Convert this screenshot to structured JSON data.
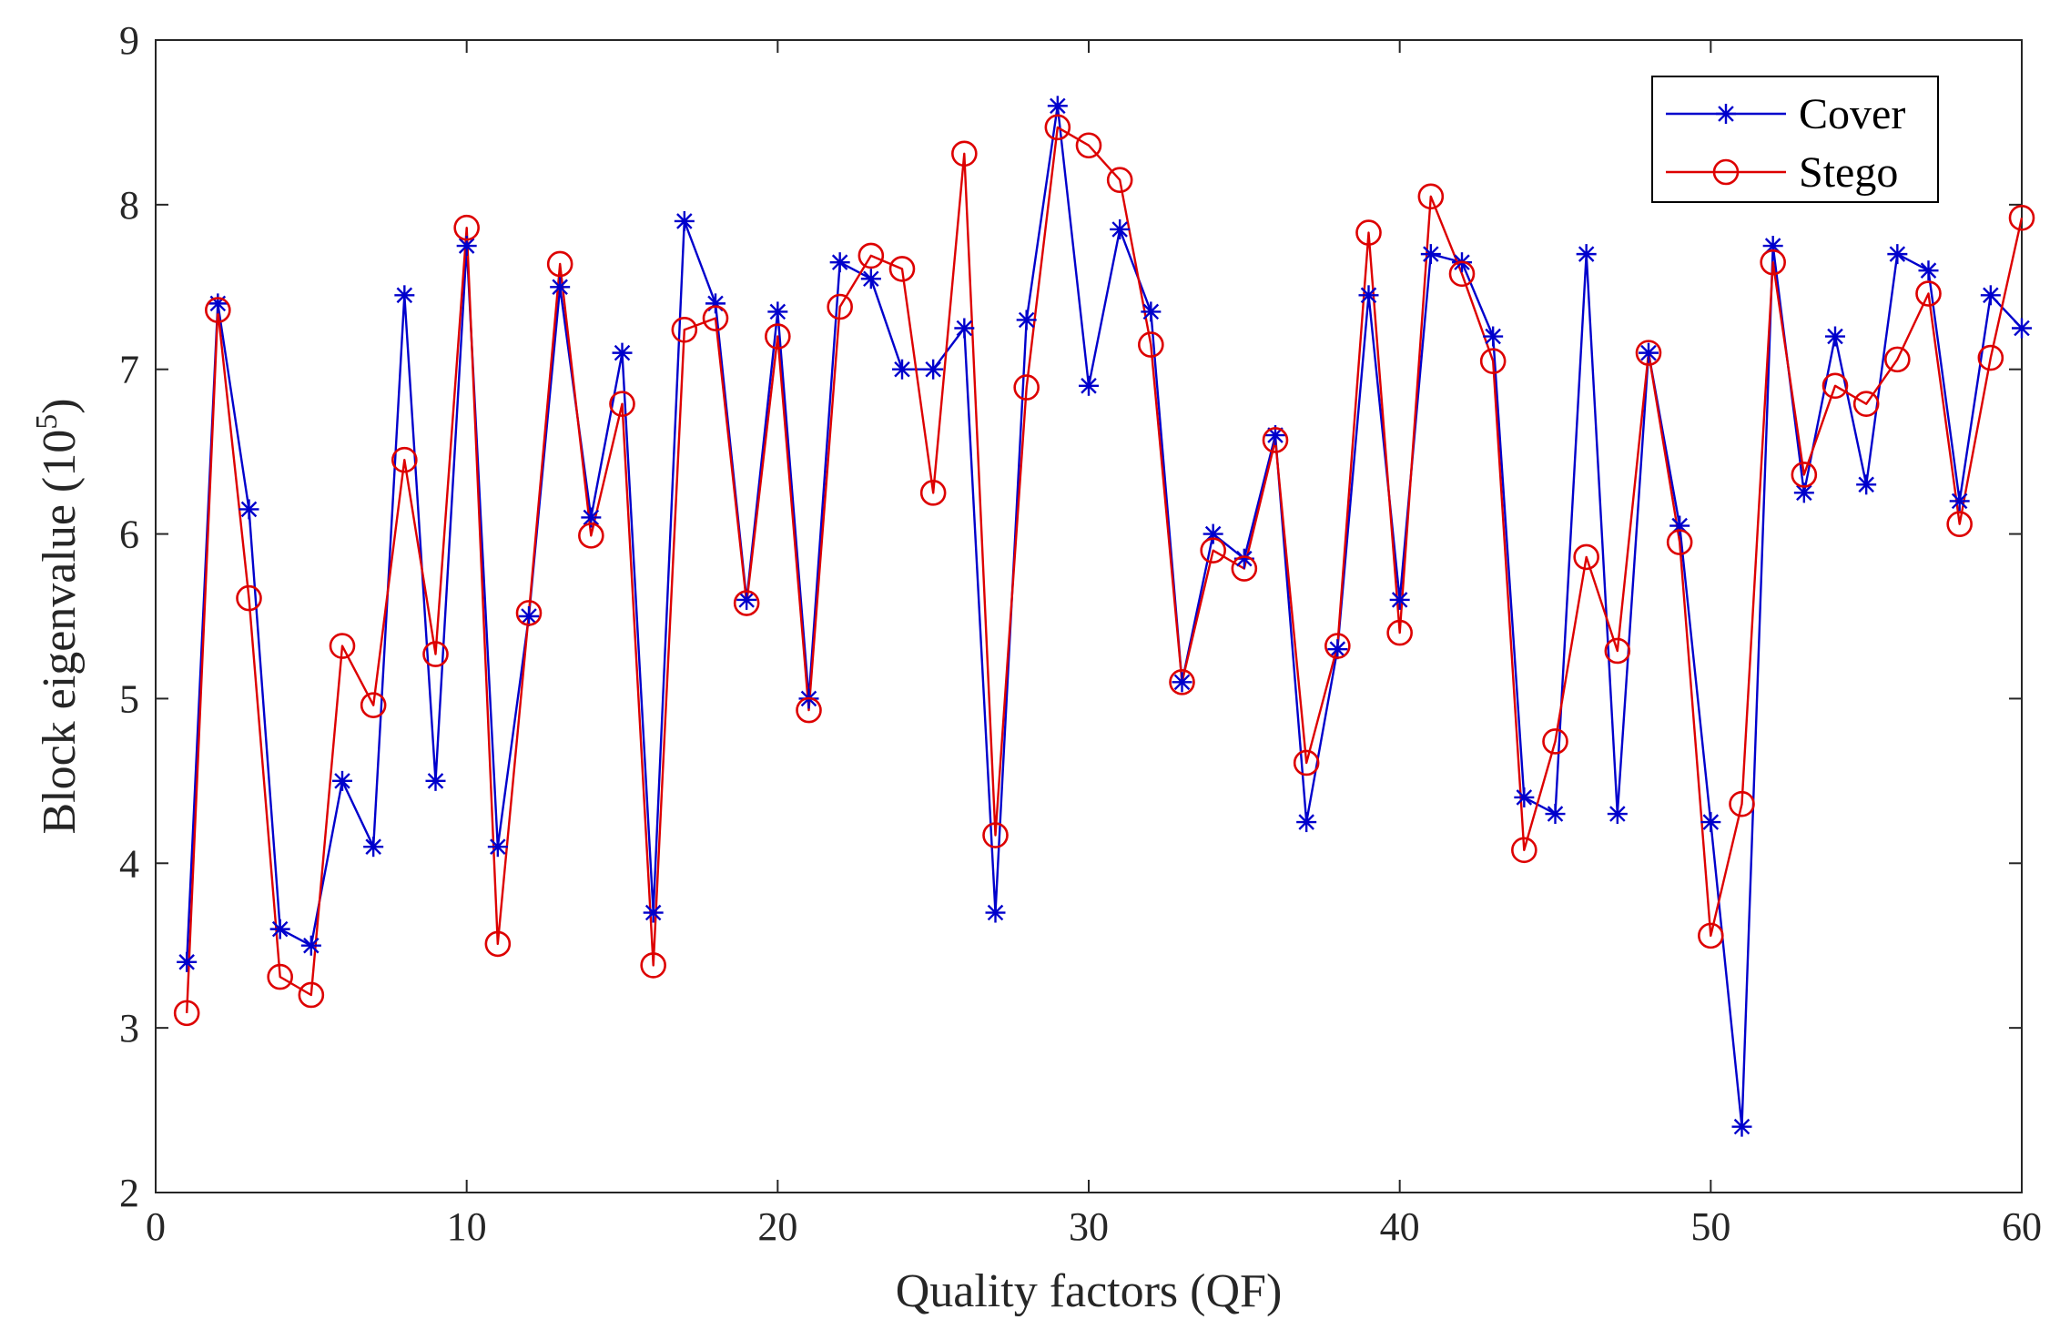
{
  "chart_data": {
    "type": "line",
    "xlabel": "Quality factors (QF)",
    "ylabel_main": "Block eigenvalue (10",
    "ylabel_exp": "5",
    "ylabel_close": ")",
    "xlim": [
      0,
      60
    ],
    "ylim": [
      2,
      9
    ],
    "xticks": [
      "0",
      "10",
      "20",
      "30",
      "40",
      "50",
      "60"
    ],
    "yticks": [
      "2",
      "3",
      "4",
      "5",
      "6",
      "7",
      "8",
      "9"
    ],
    "x": [
      1,
      2,
      3,
      4,
      5,
      6,
      7,
      8,
      9,
      10,
      11,
      12,
      13,
      14,
      15,
      16,
      17,
      18,
      19,
      20,
      21,
      22,
      23,
      24,
      25,
      26,
      27,
      28,
      29,
      30,
      31,
      32,
      33,
      34,
      35,
      36,
      37,
      38,
      39,
      40,
      41,
      42,
      43,
      44,
      45,
      46,
      47,
      48,
      49,
      50,
      51,
      52,
      53,
      54,
      55,
      56,
      57,
      58,
      59,
      60
    ],
    "legend_position": "top-right",
    "series": [
      {
        "name": "Cover",
        "color": "#0000cc",
        "marker": "asterisk",
        "values": [
          3.4,
          7.4,
          6.15,
          3.6,
          3.5,
          4.5,
          4.1,
          7.45,
          4.5,
          7.75,
          4.1,
          5.5,
          7.5,
          6.1,
          7.1,
          3.7,
          7.9,
          7.4,
          5.6,
          7.35,
          5.0,
          7.65,
          7.55,
          7.0,
          7.0,
          7.25,
          3.7,
          7.3,
          8.6,
          6.9,
          7.85,
          7.35,
          5.1,
          6.0,
          5.85,
          6.6,
          4.25,
          5.3,
          7.45,
          5.6,
          7.7,
          7.65,
          7.2,
          4.4,
          4.3,
          7.7,
          4.3,
          7.1,
          6.05,
          4.25,
          2.4,
          7.75,
          6.25,
          7.2,
          6.3,
          7.7,
          7.6,
          6.2,
          7.45,
          7.25
        ]
      },
      {
        "name": "Stego",
        "color": "#dd0000",
        "marker": "circle",
        "values": [
          3.09,
          7.36,
          5.61,
          3.31,
          3.2,
          5.32,
          4.96,
          6.45,
          5.27,
          7.86,
          3.51,
          5.52,
          7.64,
          5.99,
          6.79,
          3.38,
          7.24,
          7.31,
          5.58,
          7.2,
          4.93,
          7.38,
          7.69,
          7.61,
          6.25,
          8.31,
          4.17,
          6.89,
          8.47,
          8.36,
          8.15,
          7.15,
          5.1,
          5.9,
          5.79,
          6.57,
          4.61,
          5.32,
          7.83,
          5.4,
          8.05,
          7.58,
          7.05,
          4.08,
          4.74,
          5.86,
          5.29,
          7.1,
          5.95,
          3.56,
          4.36,
          7.65,
          6.36,
          6.9,
          6.79,
          7.06,
          7.46,
          6.06,
          7.07,
          7.92
        ]
      }
    ]
  }
}
